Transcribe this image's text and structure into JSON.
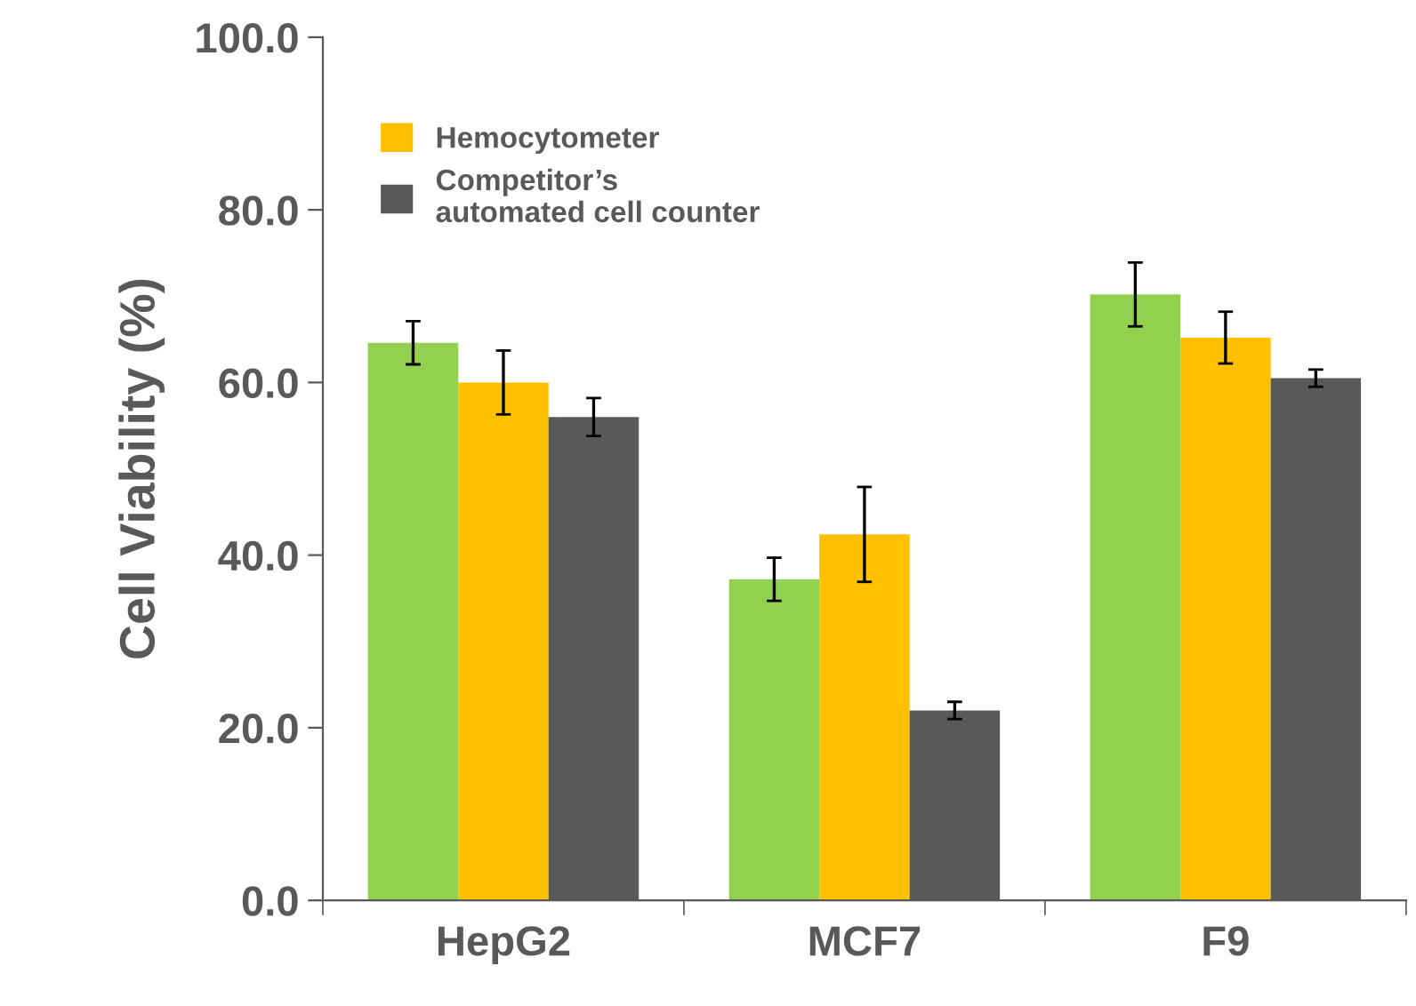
{
  "chart_data": {
    "type": "bar",
    "ylabel": "Cell Viability (%)",
    "categories": [
      "HepG2",
      "MCF7",
      "F9"
    ],
    "series": [
      {
        "color": "#92d050",
        "values": [
          64.6,
          37.2,
          70.2
        ],
        "errors": [
          2.5,
          2.5,
          3.7
        ]
      },
      {
        "name": "Hemocytometer",
        "color": "#ffc000",
        "values": [
          60.0,
          42.4,
          65.2
        ],
        "errors": [
          3.7,
          5.5,
          3.0
        ]
      },
      {
        "name": "Competitor’s\nautomated cell counter",
        "color": "#595959",
        "values": [
          56.0,
          22.0,
          60.5
        ],
        "errors": [
          2.2,
          1.0,
          1.0
        ]
      }
    ],
    "ylim": [
      0,
      100
    ],
    "yticks": [
      {
        "value": 0,
        "label": "0.0"
      },
      {
        "value": 20,
        "label": "20.0"
      },
      {
        "value": 40,
        "label": "40.0"
      },
      {
        "value": 60,
        "label": "60.0"
      },
      {
        "value": 80,
        "label": "80.0"
      },
      {
        "value": 100,
        "label": "100.0"
      }
    ],
    "grid": false,
    "legend": "top left"
  }
}
